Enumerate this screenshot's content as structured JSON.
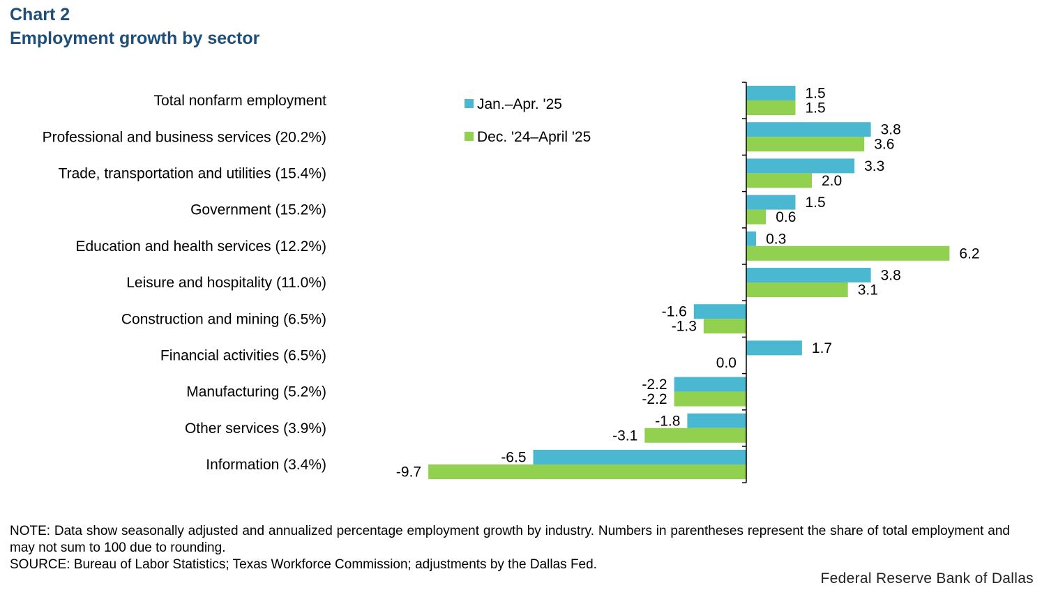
{
  "header": {
    "chart_number": "Chart 2",
    "title": "Employment growth by sector"
  },
  "colors": {
    "title": "#1f4e79",
    "series1": "#4bb8d2",
    "series2": "#92d050"
  },
  "chart_data": {
    "type": "bar",
    "orientation": "horizontal",
    "categories": [
      "Total nonfarm employment",
      "Professional and business services (20.2%)",
      "Trade, transportation and utilities (15.4%)",
      "Government  (15.2%)",
      "Education and health services (12.2%)",
      "Leisure and hospitality (11.0%)",
      "Construction and mining (6.5%)",
      "Financial activities  (6.5%)",
      "Manufacturing  (5.2%)",
      "Other services  (3.9%)",
      "Information  (3.4%)"
    ],
    "series": [
      {
        "name": "Jan.–Apr. '25",
        "values": [
          1.5,
          3.8,
          3.3,
          1.5,
          0.3,
          3.8,
          -1.6,
          1.7,
          -2.2,
          -1.8,
          -6.5
        ],
        "labels": [
          "1.5",
          "3.8",
          "3.3",
          "1.5",
          "0.3",
          "3.8",
          "-1.6",
          "1.7",
          "-2.2",
          "-1.8",
          "-6.5"
        ]
      },
      {
        "name": "Dec. '24–April '25",
        "values": [
          1.5,
          3.6,
          2.0,
          0.6,
          6.2,
          3.1,
          -1.3,
          0.0,
          -2.2,
          -3.1,
          -9.7
        ],
        "labels": [
          "1.5",
          "3.6",
          "2.0",
          "0.6",
          "6.2",
          "3.1",
          "-1.3",
          "0.0",
          "-2.2",
          "-3.1",
          "-9.7"
        ]
      }
    ],
    "xlim": [
      -9.7,
      6.2
    ],
    "legend": "top-center",
    "grid": false
  },
  "footer": {
    "note": "NOTE: Data show seasonally adjusted and annualized percentage employment growth by industry. Numbers in parentheses represent the share of total employment and may not sum to 100 due to rounding.",
    "source": "SOURCE: Bureau of Labor Statistics; Texas Workforce Commission; adjustments  by the Dallas Fed.",
    "brand": "Federal Reserve Bank of Dallas"
  }
}
